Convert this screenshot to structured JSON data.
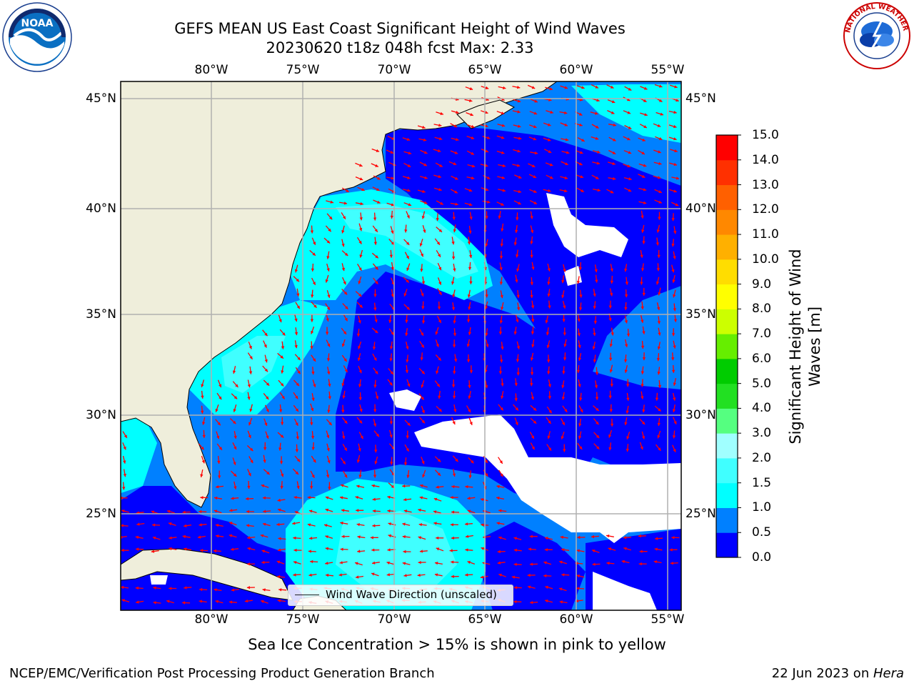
{
  "title": {
    "line1": "GEFS MEAN US East Coast Significant Height of Wind Waves",
    "line2": "20230620 t18z 048h fcst   Max: 2.33"
  },
  "map": {
    "lon_ticks": [
      "80°W",
      "75°W",
      "70°W",
      "65°W",
      "60°W",
      "55°W"
    ],
    "lat_ticks": [
      "45°N",
      "40°N",
      "35°N",
      "30°N",
      "25°N"
    ],
    "extent": {
      "lon_min": -85,
      "lon_max": -54.3,
      "lat_min": 21,
      "lat_max": 46
    },
    "legend_label": "Wind Wave Direction (unscaled)",
    "arrow_color": "#ff0000",
    "land_color": "#efeedb"
  },
  "colorbar": {
    "title_line1": "Significant Height of Wind",
    "title_line2": "Waves [m]",
    "levels": [
      "0.0",
      "0.5",
      "1.0",
      "1.5",
      "2.0",
      "3.0",
      "4.0",
      "5.0",
      "6.0",
      "7.0",
      "8.0",
      "9.0",
      "10.0",
      "11.0",
      "12.0",
      "13.0",
      "14.0",
      "15.0"
    ],
    "colors": [
      "#0000ff",
      "#0080ff",
      "#00ffff",
      "#40ffff",
      "#a0ffff",
      "#55ff80",
      "#22e022",
      "#00cc00",
      "#66ee00",
      "#ccff00",
      "#ffff00",
      "#ffdd00",
      "#ffb000",
      "#ff8800",
      "#ff6000",
      "#ff3000",
      "#ff0000"
    ]
  },
  "caption": "Sea Ice Concentration > 15% is shown in pink to yellow",
  "footer": {
    "left": "NCEP/EMC/Verification Post Processing Product Generation Branch",
    "right_prefix": "22 Jun 2023 on ",
    "right_host": "Hera"
  },
  "logos": {
    "left": "NOAA",
    "right": "NATIONAL WEATHER SERVICE"
  }
}
